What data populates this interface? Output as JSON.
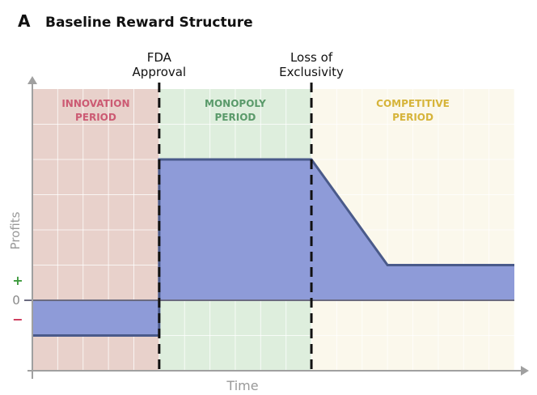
{
  "panel": {
    "letter": "A",
    "title": "Baseline Reward Structure"
  },
  "chart_data": {
    "type": "area",
    "title": "Baseline Reward Structure",
    "xlabel": "Time",
    "ylabel": "Profits",
    "y_zero_label": "0",
    "y_positive_label": "+",
    "y_negative_label": "−",
    "grid": true,
    "x_axis_values": false,
    "y_axis_values": false,
    "periods": [
      {
        "name": "INNOVATION\nPERIOD",
        "color": "#cc5a73",
        "fill": "#e8d1cb"
      },
      {
        "name": "MONOPOLY\nPERIOD",
        "color": "#5a9a6a",
        "fill": "#deeedd"
      },
      {
        "name": "COMPETITIVE\nPERIOD",
        "color": "#d6b43a",
        "fill": "#fbf8ec"
      }
    ],
    "events": [
      {
        "label": "FDA\nApproval"
      },
      {
        "label": "Loss of\nExclusivity"
      }
    ],
    "profit_series": {
      "fill": "#8e9bd8",
      "line": "#4a5a8a",
      "points": [
        [
          0,
          -1
        ],
        [
          5,
          -1
        ],
        [
          5,
          4
        ],
        [
          11,
          4
        ],
        [
          14,
          1
        ],
        [
          19,
          1
        ]
      ]
    },
    "colors": {
      "axis": "#a0a0a0",
      "positive": "#3d9a3d",
      "negative": "#cc3355",
      "event_line": "#111111"
    }
  }
}
